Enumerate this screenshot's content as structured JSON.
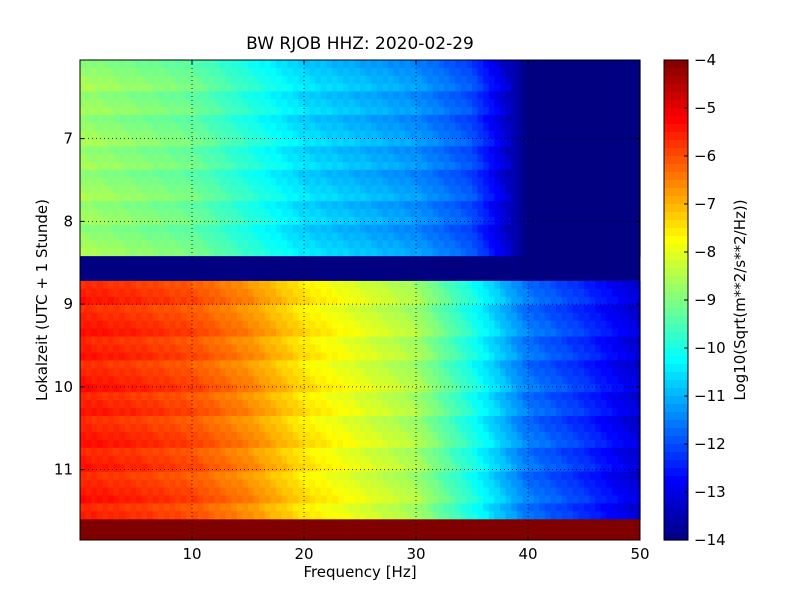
{
  "chart_data": {
    "type": "heatmap",
    "title": "BW RJOB HHZ: 2020-02-29",
    "xlabel": "Frequency [Hz]",
    "ylabel": "Lokalzeit (UTC + 1 Stunde)",
    "xlim": [
      0,
      50
    ],
    "ylim": [
      11.85,
      6.05
    ],
    "y_inverted": true,
    "x_ticks": [
      10,
      20,
      30,
      40,
      50
    ],
    "x_tick_labels": [
      "10",
      "20",
      "30",
      "40",
      "50"
    ],
    "y_ticks": [
      7,
      8,
      9,
      10,
      11
    ],
    "y_tick_labels": [
      "7",
      "8",
      "9",
      "10",
      "11"
    ],
    "grid": true,
    "colormap": "jet",
    "colorbar": {
      "label": "Log10(Sqrt(m**2/s**2/Hz))",
      "range": [
        -14,
        -4
      ],
      "ticks": [
        -4,
        -5,
        -6,
        -7,
        -8,
        -9,
        -10,
        -11,
        -12,
        -13,
        -14
      ],
      "tick_labels": [
        "−4",
        "−5",
        "−6",
        "−7",
        "−8",
        "−9",
        "−10",
        "−11",
        "−12",
        "−13",
        "−14"
      ]
    },
    "segments": [
      {
        "time_start": 6.05,
        "time_end": 8.42,
        "level": "quiet",
        "profile_hz": [
          0,
          10,
          20,
          30,
          35,
          40,
          50
        ],
        "profile_value": [
          -8.7,
          -9.2,
          -10.6,
          -11.3,
          -12.0,
          -14.0,
          -14.0
        ]
      },
      {
        "time_start": 8.42,
        "time_end": 8.72,
        "level": "gap",
        "value": -14
      },
      {
        "time_start": 8.72,
        "time_end": 11.6,
        "level": "noisy",
        "profile_hz": [
          0,
          5,
          10,
          15,
          20,
          30,
          35,
          40,
          45,
          50
        ],
        "profile_value": [
          -5.5,
          -5.7,
          -6.0,
          -6.6,
          -7.5,
          -8.6,
          -10.0,
          -11.6,
          -12.3,
          -13.2
        ]
      },
      {
        "time_start": 11.6,
        "time_end": 11.85,
        "level": "saturated",
        "value": -4
      }
    ]
  }
}
